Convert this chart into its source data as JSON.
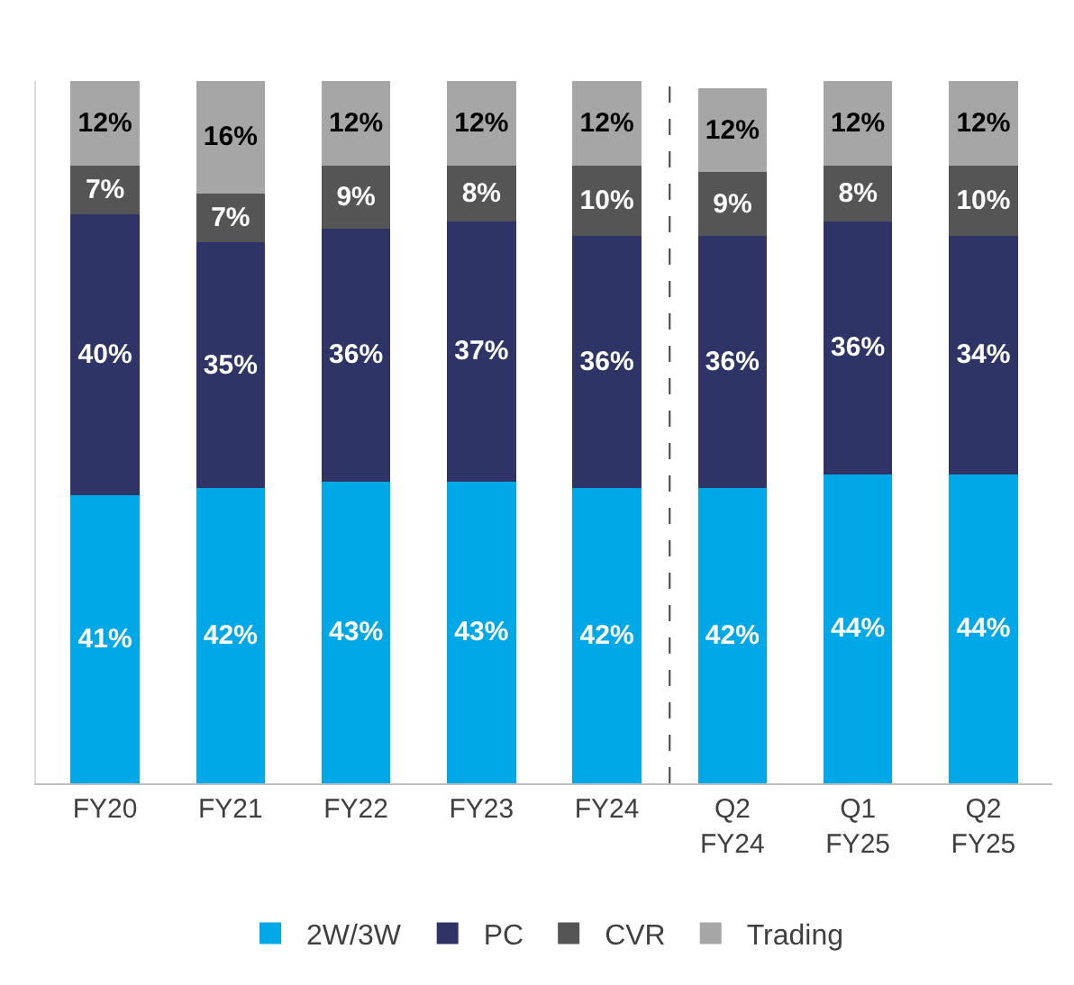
{
  "chart_data": {
    "type": "bar",
    "stacked": true,
    "legend": "bottom",
    "categories": [
      "FY20",
      "FY21",
      "FY22",
      "FY23",
      "FY24",
      "Q2\nFY24",
      "Q1\nFY25",
      "Q2\nFY25"
    ],
    "ylim": [
      0,
      100
    ],
    "tick_labels": "x",
    "series": [
      {
        "name": "2W/3W",
        "color": "#00a8e8",
        "values": [
          41,
          42,
          43,
          43,
          42,
          42,
          44,
          44
        ],
        "value_labels": [
          "41%",
          "42%",
          "43%",
          "43%",
          "42%",
          "42%",
          "44%",
          "44%"
        ]
      },
      {
        "name": "PC",
        "color": "#2e3566",
        "values": [
          40,
          35,
          36,
          37,
          36,
          36,
          36,
          34
        ],
        "value_labels": [
          "40%",
          "35%",
          "36%",
          "37%",
          "36%",
          "36%",
          "36%",
          "34%"
        ]
      },
      {
        "name": "CVR",
        "color": "#555555",
        "values": [
          7,
          7,
          9,
          8,
          10,
          9,
          8,
          10
        ],
        "value_labels": [
          "7%",
          "7%",
          "9%",
          "8%",
          "10%",
          "9%",
          "8%",
          "10%"
        ]
      },
      {
        "name": "Trading",
        "color": "#a6a6a6",
        "values": [
          12,
          16,
          12,
          12,
          12,
          12,
          12,
          12
        ],
        "value_labels": [
          "12%",
          "16%",
          "12%",
          "12%",
          "12%",
          "12%",
          "12%",
          "12%"
        ]
      }
    ]
  }
}
